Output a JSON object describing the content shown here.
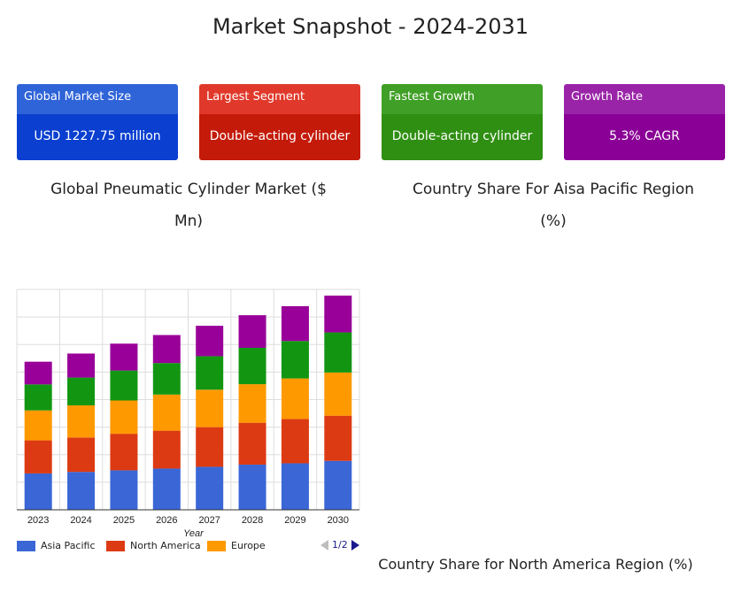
{
  "title": "Market Snapshot - 2024-2031",
  "cards": [
    {
      "label": "Global Market Size",
      "value": "USD 1227.75 million",
      "head_color": "#2f64d8",
      "body_color": "#0a3fd0"
    },
    {
      "label": "Largest Segment",
      "value": "Double-acting cylinder",
      "head_color": "#e0392b",
      "body_color": "#c41a0a"
    },
    {
      "label": "Fastest Growth",
      "value": "Double-acting cylinder",
      "head_color": "#3f9f26",
      "body_color": "#2f8f12"
    },
    {
      "label": "Growth Rate",
      "value": "5.3% CAGR",
      "head_color": "#9a24a8",
      "body_color": "#8a0096"
    }
  ],
  "left_title_line1": "Global Pneumatic Cylinder Market ($",
  "left_title_line2": "Mn)",
  "right_title_line1": "Country Share For Aisa Pacific Region",
  "right_title_line2": "(%)",
  "bottom_right_title": "Country Share for North America Region (%)",
  "pager_text": "1/2",
  "chart_data": {
    "type": "bar",
    "stacked": true,
    "xlabel": "Year",
    "categories": [
      "2023",
      "2024",
      "2025",
      "2026",
      "2027",
      "2028",
      "2029",
      "2030"
    ],
    "ylim": [
      0,
      100
    ],
    "grid": true,
    "series": [
      {
        "name": "Asia Pacific",
        "color": "#3a66d6",
        "values": [
          16.5,
          17.2,
          17.9,
          18.7,
          19.5,
          20.5,
          21.1,
          22.2
        ]
      },
      {
        "name": "North America",
        "color": "#dc3a12",
        "values": [
          15.0,
          15.6,
          16.6,
          17.2,
          18.0,
          19.0,
          20.1,
          20.5
        ]
      },
      {
        "name": "Europe",
        "color": "#ff9900",
        "values": [
          13.6,
          14.6,
          15.1,
          16.4,
          17.0,
          17.5,
          18.4,
          19.6
        ]
      },
      {
        "name": "",
        "color": "#129612",
        "values": [
          11.8,
          12.6,
          13.6,
          14.3,
          15.2,
          16.5,
          17.0,
          18.2
        ]
      },
      {
        "name": "",
        "color": "#990099",
        "values": [
          10.3,
          10.9,
          12.2,
          12.7,
          13.8,
          14.8,
          15.8,
          16.7
        ]
      }
    ]
  }
}
